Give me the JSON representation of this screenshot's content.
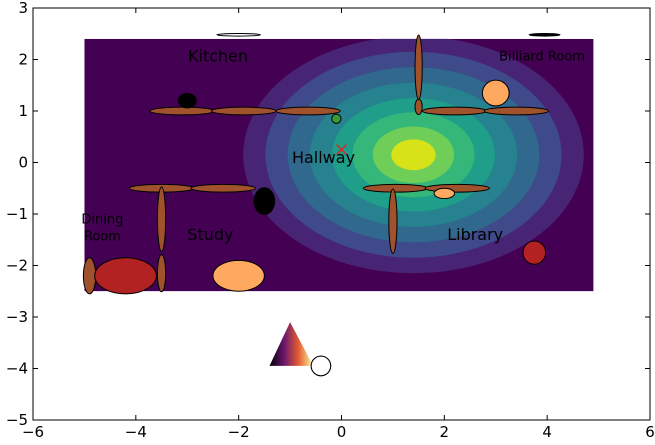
{
  "chart_data": {
    "type": "contour",
    "title": "",
    "xlabel": "",
    "ylabel": "",
    "xlim": [
      -6,
      6
    ],
    "ylim": [
      -5,
      3
    ],
    "xticks": [
      {
        "v": -6,
        "label": "−6"
      },
      {
        "v": -4,
        "label": "−4"
      },
      {
        "v": -2,
        "label": "−2"
      },
      {
        "v": 0,
        "label": "0"
      },
      {
        "v": 2,
        "label": "2"
      },
      {
        "v": 4,
        "label": "4"
      },
      {
        "v": 6,
        "label": "6"
      }
    ],
    "yticks": [
      {
        "v": -5,
        "label": "−5"
      },
      {
        "v": -4,
        "label": "−4"
      },
      {
        "v": -3,
        "label": "−3"
      },
      {
        "v": -2,
        "label": "−2"
      },
      {
        "v": -1,
        "label": "−1"
      },
      {
        "v": 0,
        "label": "0"
      },
      {
        "v": 1,
        "label": "1"
      },
      {
        "v": 2,
        "label": "2"
      },
      {
        "v": 3,
        "label": "3"
      }
    ],
    "grid": false,
    "contour": {
      "extent": [
        -5,
        4.9,
        -2.5,
        2.4
      ],
      "center": [
        1.4,
        0.15
      ],
      "radii": [
        3.6,
        2.5
      ],
      "levels": [
        {
          "r": 1.0,
          "color": "#440154"
        },
        {
          "r": 0.92,
          "color": "#482475"
        },
        {
          "r": 0.8,
          "color": "#3e4a89"
        },
        {
          "r": 0.68,
          "color": "#31688e"
        },
        {
          "r": 0.56,
          "color": "#26828e"
        },
        {
          "r": 0.44,
          "color": "#1f9e89"
        },
        {
          "r": 0.33,
          "color": "#35b779"
        },
        {
          "r": 0.22,
          "color": "#6ece58"
        },
        {
          "r": 0.12,
          "color": "#d8e219"
        }
      ]
    },
    "walls": [
      {
        "cx": -3.1,
        "cy": 1.0,
        "w": 1.25,
        "h": 0.15
      },
      {
        "cx": -1.9,
        "cy": 1.0,
        "w": 1.25,
        "h": 0.15
      },
      {
        "cx": -0.65,
        "cy": 1.0,
        "w": 1.25,
        "h": 0.15
      },
      {
        "cx": 2.2,
        "cy": 1.0,
        "w": 1.25,
        "h": 0.15
      },
      {
        "cx": 3.4,
        "cy": 1.0,
        "w": 1.25,
        "h": 0.15
      },
      {
        "cx": 1.5,
        "cy": 1.85,
        "w": 0.14,
        "h": 1.25
      },
      {
        "cx": 1.5,
        "cy": 1.08,
        "w": 0.14,
        "h": 0.3
      },
      {
        "cx": -3.5,
        "cy": -0.5,
        "w": 1.25,
        "h": 0.15
      },
      {
        "cx": -2.3,
        "cy": -0.5,
        "w": 1.25,
        "h": 0.15
      },
      {
        "cx": 1.05,
        "cy": -0.5,
        "w": 1.25,
        "h": 0.15
      },
      {
        "cx": 2.25,
        "cy": -0.5,
        "w": 1.25,
        "h": 0.15
      },
      {
        "cx": -3.5,
        "cy": -1.1,
        "w": 0.16,
        "h": 1.25
      },
      {
        "cx": -3.5,
        "cy": -2.15,
        "w": 0.16,
        "h": 0.72
      },
      {
        "cx": 1.0,
        "cy": -1.14,
        "w": 0.16,
        "h": 1.25
      },
      {
        "cx": -4.9,
        "cy": -2.2,
        "w": 0.24,
        "h": 0.7
      }
    ],
    "objects": [
      {
        "name": "kitchen-top-bar",
        "cx": -2.0,
        "cy": 2.48,
        "w": 0.85,
        "h": 0.05,
        "fill": "#ffffff"
      },
      {
        "name": "billiard-top-bar",
        "cx": 3.95,
        "cy": 2.48,
        "w": 0.6,
        "h": 0.05,
        "fill": "#000000"
      },
      {
        "name": "black-oval-kitchen",
        "cx": -3.0,
        "cy": 1.2,
        "w": 0.35,
        "h": 0.28,
        "fill": "#000000"
      },
      {
        "name": "green-dot",
        "cx": -0.1,
        "cy": 0.85,
        "w": 0.18,
        "h": 0.18,
        "fill": "#3a9a3a"
      },
      {
        "name": "billiard-ball-orange",
        "cx": 3.0,
        "cy": 1.35,
        "w": 0.52,
        "h": 0.5,
        "fill": "#ffa860"
      },
      {
        "name": "black-oval-study",
        "cx": -1.5,
        "cy": -0.75,
        "w": 0.4,
        "h": 0.52,
        "fill": "#000000"
      },
      {
        "name": "small-orange-oval-library",
        "cx": 2.0,
        "cy": -0.6,
        "w": 0.4,
        "h": 0.2,
        "fill": "#ffa860"
      },
      {
        "name": "red-oval-library",
        "cx": 3.75,
        "cy": -1.75,
        "w": 0.44,
        "h": 0.45,
        "fill": "#b22222"
      },
      {
        "name": "dining-table",
        "cx": -4.2,
        "cy": -2.2,
        "w": 1.2,
        "h": 0.7,
        "fill": "#b22222"
      },
      {
        "name": "study-orange-ellipse",
        "cx": -2.0,
        "cy": -2.2,
        "w": 1.0,
        "h": 0.6,
        "fill": "#ffa860"
      },
      {
        "name": "white-circle",
        "cx": -0.4,
        "cy": -3.95,
        "w": 0.38,
        "h": 0.38,
        "fill": "#ffffff"
      }
    ],
    "marker": {
      "x": 0.0,
      "y": 0.25,
      "color": "#d62728"
    },
    "triangle": {
      "points": [
        [
          -1.4,
          -3.95
        ],
        [
          -1.0,
          -3.1
        ],
        [
          -0.55,
          -3.95
        ]
      ],
      "stops": [
        "#000004",
        "#6a176e",
        "#e55c30",
        "#fcffa4"
      ]
    },
    "room_labels": [
      {
        "text": "Kitchen",
        "x": -2.4,
        "y": 2.05,
        "size": 16
      },
      {
        "text": "Billiard Room",
        "x": 3.9,
        "y": 2.05,
        "size": 13
      },
      {
        "text": "Hallway",
        "x": -0.35,
        "y": 0.08,
        "size": 16
      },
      {
        "text": "Dining",
        "x": -4.65,
        "y": -1.12,
        "size": 13
      },
      {
        "text": "Room",
        "x": -4.65,
        "y": -1.45,
        "size": 13
      },
      {
        "text": "Study",
        "x": -2.55,
        "y": -1.42,
        "size": 16
      },
      {
        "text": "Library",
        "x": 2.6,
        "y": -1.42,
        "size": 16
      }
    ],
    "colors": {
      "wall": "#a0522d",
      "axes": "#000000"
    }
  }
}
